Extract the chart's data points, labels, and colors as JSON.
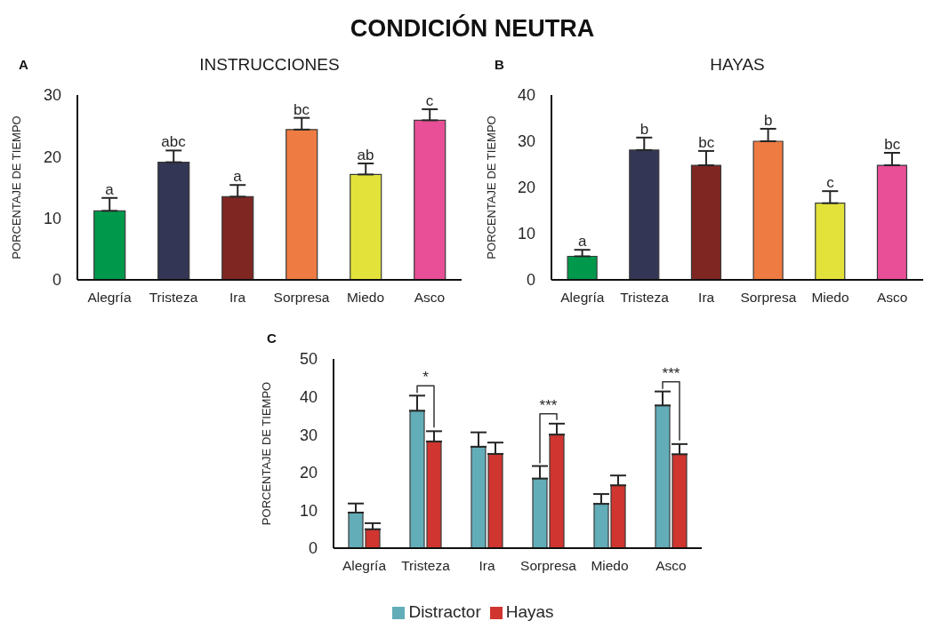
{
  "chart_data": [
    {
      "type": "other",
      "title": "CONDICIÓN NEUTRA"
    },
    {
      "type": "bar",
      "title": "INSTRUCCIONES",
      "ylabel": "PORCENTAJE DE TIEMPO",
      "categories": [
        "Alegría",
        "Tristeza",
        "Ira",
        "Sorpresa",
        "Miedo",
        "Asco"
      ],
      "values": [
        11.2,
        19.1,
        13.5,
        24.4,
        17.1,
        25.9
      ],
      "colors": [
        "#00994c",
        "#333654",
        "#7f2623",
        "#ee7b41",
        "#e2e23a",
        "#e84f96"
      ],
      "errors": [
        [
          11.2,
          13.3
        ],
        [
          19.1,
          21.0
        ],
        [
          13.5,
          15.4
        ],
        [
          24.4,
          26.3
        ],
        [
          17.1,
          18.9
        ],
        [
          25.9,
          27.7
        ]
      ],
      "ylim": [
        0,
        30
      ],
      "yticks": [
        0,
        10,
        20,
        30
      ],
      "grid": false,
      "annotations": [
        "A",
        {
          "text": "a",
          "x": "Alegría",
          "y": 13.3
        },
        {
          "text": "abc",
          "x": "Tristeza",
          "y": 21.0
        },
        {
          "text": "a",
          "x": "Ira",
          "y": 15.4
        },
        {
          "text": "bc",
          "x": "Sorpresa",
          "y": 26.3
        },
        {
          "text": "ab",
          "x": "Miedo",
          "y": 18.9
        },
        {
          "text": "c",
          "x": "Asco",
          "y": 27.7
        }
      ]
    },
    {
      "type": "bar",
      "title": "HAYAS",
      "ylabel": "PORCENTAJE DE TIEMPO",
      "categories": [
        "Alegría",
        "Tristeza",
        "Ira",
        "Sorpresa",
        "Miedo",
        "Asco"
      ],
      "values": [
        5.1,
        28.1,
        24.8,
        30.0,
        16.6,
        24.8
      ],
      "colors": [
        "#00994c",
        "#333654",
        "#7f2623",
        "#ee7b41",
        "#e2e23a",
        "#e84f96"
      ],
      "errors": [
        [
          5.1,
          6.5
        ],
        [
          28.1,
          30.8
        ],
        [
          24.8,
          27.9
        ],
        [
          30.0,
          32.7
        ],
        [
          16.6,
          19.2
        ],
        [
          24.8,
          27.5
        ]
      ],
      "ylim": [
        0,
        40
      ],
      "yticks": [
        0,
        10,
        20,
        30,
        40
      ],
      "grid": false,
      "annotations": [
        "B",
        {
          "text": "a",
          "x": "Alegría",
          "y": 6.5
        },
        {
          "text": "b",
          "x": "Tristeza",
          "y": 30.8
        },
        {
          "text": "bc",
          "x": "Ira",
          "y": 27.9
        },
        {
          "text": "b",
          "x": "Sorpresa",
          "y": 32.7
        },
        {
          "text": "c",
          "x": "Miedo",
          "y": 19.2
        },
        {
          "text": "bc",
          "x": "Asco",
          "y": 27.5
        }
      ]
    },
    {
      "type": "bar",
      "ylabel": "PORCENTAJE DE TIEMPO",
      "categories": [
        "Alegría",
        "Tristeza",
        "Ira",
        "Sorpresa",
        "Miedo",
        "Asco"
      ],
      "series": [
        {
          "name": "Distractor",
          "color": "#62adb8",
          "values": [
            9.4,
            36.3,
            26.8,
            18.4,
            11.7,
            37.7
          ],
          "errors": [
            [
              9.4,
              11.8
            ],
            [
              36.3,
              40.3
            ],
            [
              26.8,
              30.6
            ],
            [
              18.4,
              21.7
            ],
            [
              11.7,
              14.3
            ],
            [
              37.7,
              41.4
            ]
          ]
        },
        {
          "name": "Hayas",
          "color": "#d0352f",
          "values": [
            5.0,
            28.2,
            24.9,
            30.0,
            16.6,
            24.8
          ],
          "errors": [
            [
              5.0,
              6.6
            ],
            [
              28.2,
              30.9
            ],
            [
              24.9,
              27.9
            ],
            [
              30.0,
              32.9
            ],
            [
              16.6,
              19.2
            ],
            [
              24.8,
              27.5
            ]
          ]
        }
      ],
      "ylim": [
        0,
        50
      ],
      "yticks": [
        0,
        10,
        20,
        30,
        40,
        50
      ],
      "grid": false,
      "legend": "bottom",
      "annotations": [
        "C",
        {
          "text": "*",
          "x": "Tristeza",
          "y": 40.3
        },
        {
          "text": "***",
          "x": "Sorpresa",
          "y": 32.9
        },
        {
          "text": "***",
          "x": "Asco",
          "y": 41.4
        }
      ]
    }
  ]
}
